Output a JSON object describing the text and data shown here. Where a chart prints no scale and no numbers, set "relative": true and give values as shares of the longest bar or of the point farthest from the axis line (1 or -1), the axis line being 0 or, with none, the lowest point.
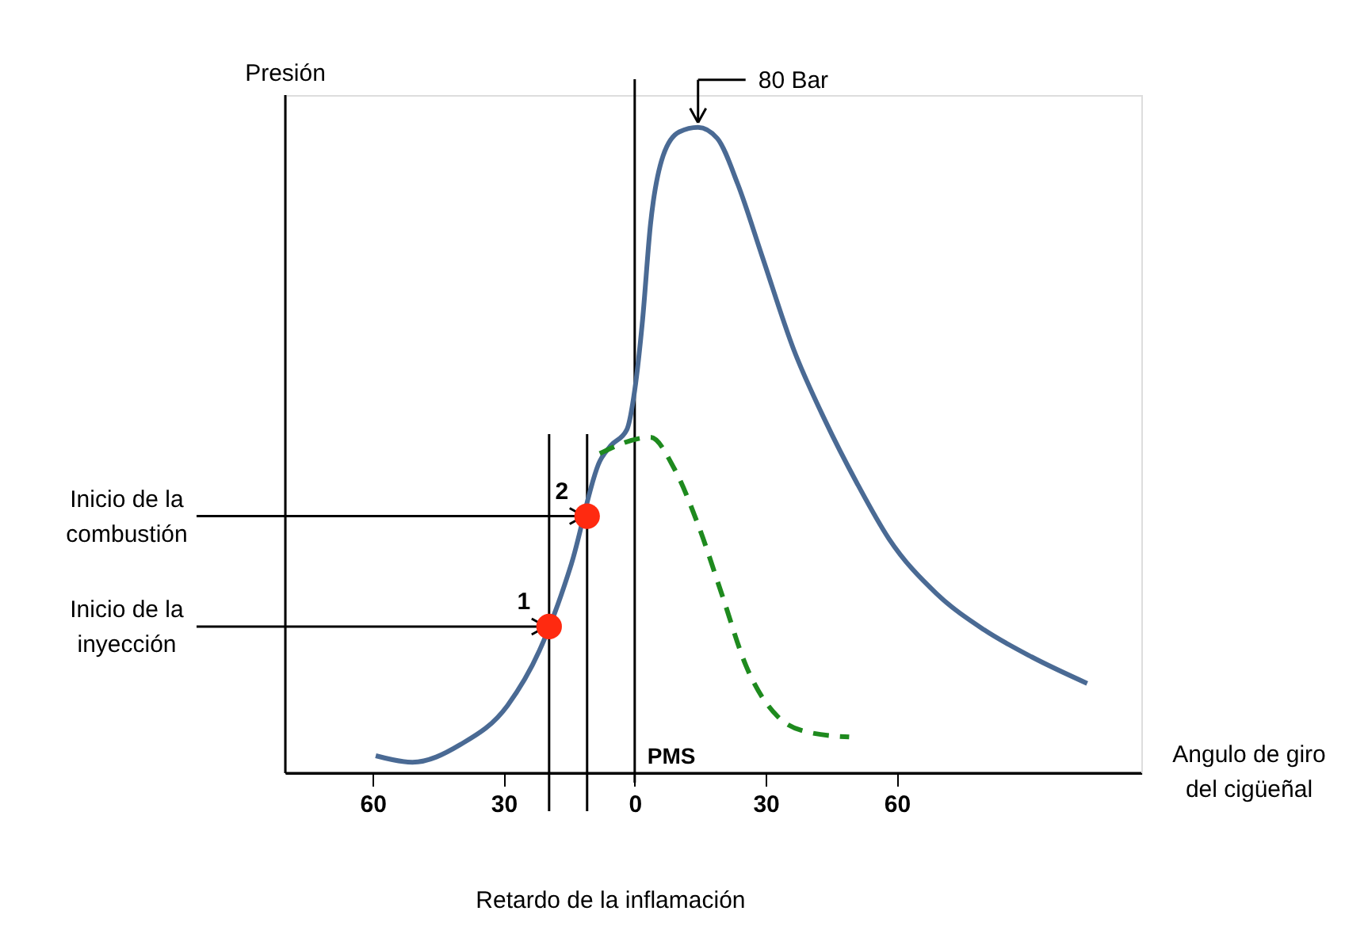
{
  "chart_data": {
    "type": "line",
    "relative": true,
    "ylabel": "Presión",
    "xlabel": "Angulo de giro\ndel cigüeñal",
    "xlim": [
      -80,
      116
    ],
    "xticks": [
      {
        "value": -60,
        "label": "60"
      },
      {
        "value": -30,
        "label": "30"
      },
      0,
      30,
      60
    ],
    "grid": false,
    "series": [
      {
        "color": "#4a6a94",
        "line_style": "solid",
        "marker": "none",
        "x": [
          -59.3,
          -50.9,
          -40,
          -29.1,
          -21.8,
          -14.5,
          -8,
          -5.5,
          -1.8,
          0,
          1.8,
          3.6,
          6.5,
          10.2,
          14.5,
          18.9,
          23.6,
          29.1,
          36.4,
          43.6,
          50.9,
          58.2,
          69.1,
          80,
          90.9,
          103.6
        ],
        "values": [
          0.027,
          0.017,
          0.044,
          0.105,
          0.19,
          0.324,
          0.483,
          0.507,
          0.532,
          0.593,
          0.702,
          0.849,
          0.956,
          0.993,
          1.0,
          0.983,
          0.912,
          0.802,
          0.656,
          0.546,
          0.449,
          0.363,
          0.278,
          0.222,
          0.18,
          0.139
        ]
      },
      {
        "color": "#1e8a1e",
        "line_style": "dashed",
        "marker": "none",
        "x": [
          -8,
          3.6,
          9.1,
          14.5,
          20,
          25.5,
          32.7,
          40,
          49.1
        ],
        "values": [
          0.495,
          0.52,
          0.471,
          0.385,
          0.276,
          0.166,
          0.088,
          0.063,
          0.056
        ]
      },
      {
        "type": "scatter",
        "color": "#ff2a10",
        "marker": "circle",
        "x": [
          -19.6,
          -10.9
        ],
        "values": [
          0.227,
          0.398
        ]
      }
    ],
    "ref_lines": [
      {
        "axis": "x",
        "value": 0,
        "label": "PMS",
        "color": "#000000"
      },
      {
        "axis": "x",
        "value": -19.6,
        "label": null,
        "color": "#000000"
      },
      {
        "axis": "x",
        "value": -10.9,
        "label": null,
        "color": "#000000"
      }
    ],
    "annotations": [
      {
        "text": "80 Bar",
        "x": 14.5,
        "y": 1.0
      },
      {
        "text": "Inicio de la\ncombustión",
        "x": -10.9,
        "y": 0.398
      },
      {
        "text": "Inicio de la\ninyección",
        "x": -19.6,
        "y": 0.227
      },
      {
        "text": "2",
        "x": -10.9,
        "y": 0.398
      },
      {
        "text": "1",
        "x": -19.6,
        "y": 0.227
      },
      "Retardo de la inflamación"
    ]
  }
}
